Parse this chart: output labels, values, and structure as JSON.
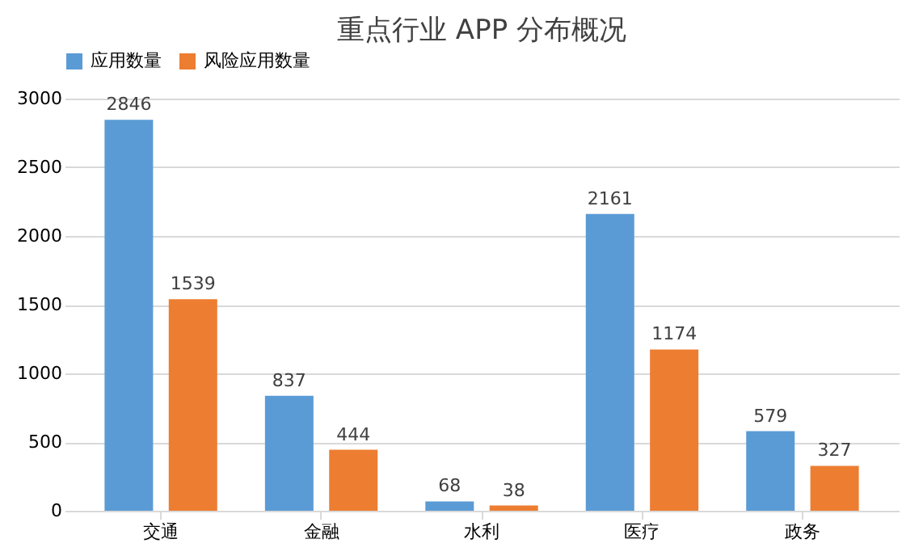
{
  "chart_data": {
    "type": "bar",
    "title": "重点行业 APP 分布概况",
    "categories": [
      "交通",
      "金融",
      "水利",
      "医疗",
      "政务"
    ],
    "series": [
      {
        "name": "应用数量",
        "color": "#5b9bd5",
        "values": [
          2846,
          837,
          68,
          2161,
          579
        ]
      },
      {
        "name": "风险应用数量",
        "color": "#ed7d31",
        "values": [
          1539,
          444,
          38,
          1174,
          327
        ]
      }
    ],
    "ylim": [
      0,
      3000
    ],
    "yticks": [
      0,
      500,
      1000,
      1500,
      2000,
      2500,
      3000
    ],
    "grid": "y",
    "legend": "top",
    "data_labels": true
  }
}
